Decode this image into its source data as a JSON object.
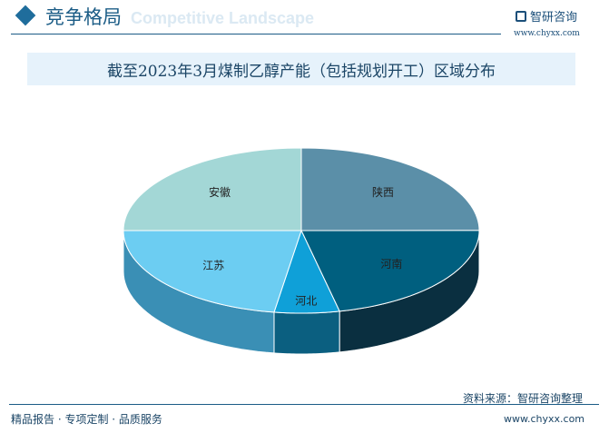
{
  "header": {
    "title": "竞争格局",
    "bg_text": "Competitive Landscape",
    "logo": "智研咨询",
    "url": "www.chyxx.com"
  },
  "footer": {
    "left": "精品报告 · 专项定制 · 品质服务",
    "source": "资料来源：智研咨询整理",
    "url": "www.chyxx.com"
  },
  "chart_data": {
    "type": "pie",
    "title": "截至2023年3月煤制乙醇产能（包括规划开工）区域分布",
    "3d": true,
    "categories": [
      "陕西",
      "河南",
      "河北",
      "江苏",
      "安徽"
    ],
    "values": [
      25,
      21.6,
      5.9,
      22.6,
      25
    ],
    "colors": [
      "#5b8fa8",
      "#005f7f",
      "#0fa0d8",
      "#6ccdf2",
      "#a3d7d6"
    ],
    "side_colors": [
      "#3d6b80",
      "#0a2f40",
      "#0b5f80",
      "#3a8fb5",
      "#7cb3b2"
    ]
  }
}
